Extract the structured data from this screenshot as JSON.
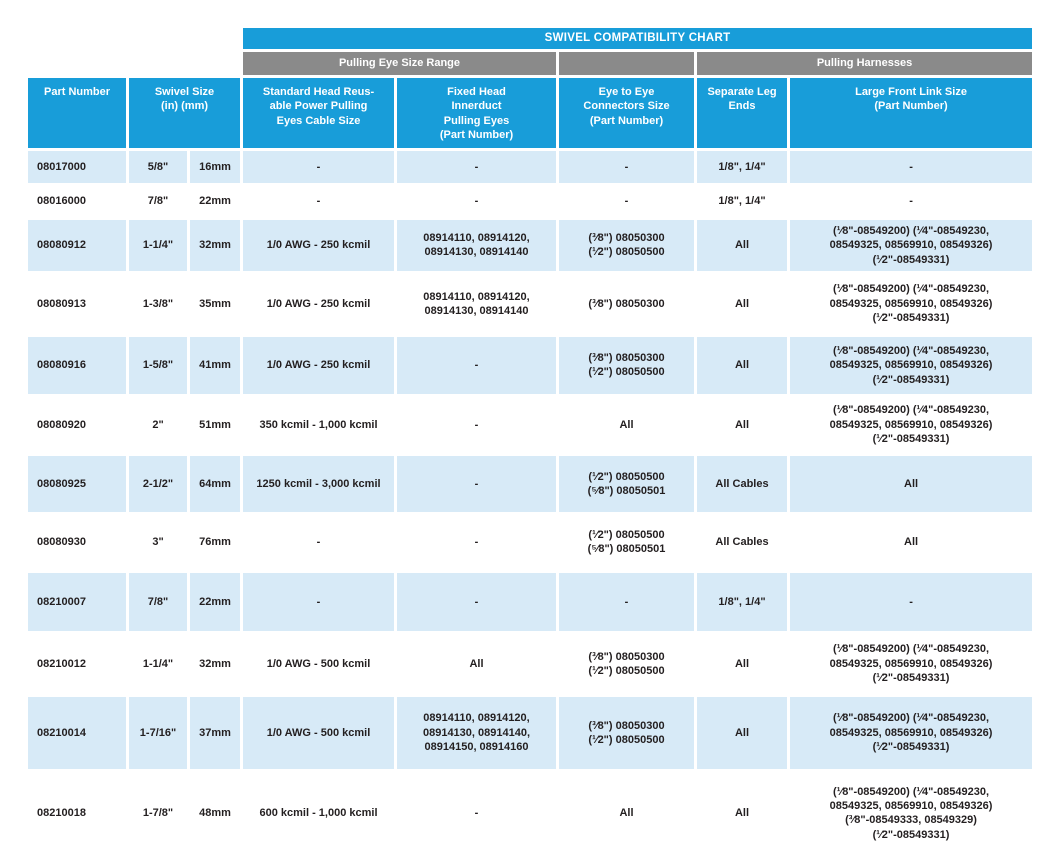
{
  "colors": {
    "header_blue": "#189DD9",
    "group_gray": "#8A8A8A",
    "row_alt_blue": "#D7EAF7",
    "header_text": "#FFFFFF",
    "body_text": "#231F20"
  },
  "table": {
    "title": "SWIVEL COMPATIBILITY CHART",
    "groups": {
      "pulling_eye": "Pulling Eye Size Range",
      "pulling_harnesses": "Pulling Harnesses"
    },
    "columns": {
      "part_number": "Part Number",
      "swivel_size": "Swivel Size\n(in) (mm)",
      "standard_head": "Standard Head Reus-\nable Power Pulling\nEyes Cable Size",
      "fixed_head": "Fixed Head\nInnerduct\nPulling Eyes\n(Part Number)",
      "eye_to_eye": "Eye to Eye\nConnectors Size\n(Part Number)",
      "separate_leg": "Separate Leg\nEnds",
      "large_front_link": "Large Front Link Size\n(Part Number)"
    },
    "rows": [
      {
        "part_number": "08017000",
        "size_in": "5/8\"",
        "size_mm": "16mm",
        "standard_head": "-",
        "fixed_head": "-",
        "eye_to_eye": "-",
        "separate_leg_ends": "1/8\", 1/4\"",
        "large_front_link": "-"
      },
      {
        "part_number": "08016000",
        "size_in": "7/8\"",
        "size_mm": "22mm",
        "standard_head": "-",
        "fixed_head": "-",
        "eye_to_eye": "-",
        "separate_leg_ends": "1/8\", 1/4\"",
        "large_front_link": "-"
      },
      {
        "part_number": "08080912",
        "size_in": "1-1/4\"",
        "size_mm": "32mm",
        "standard_head": "1/0 AWG - 250 kcmil",
        "fixed_head": "08914110, 08914120,\n08914130, 08914140",
        "eye_to_eye": "(³⁄8\") 08050300\n(¹⁄2\") 08050500",
        "separate_leg_ends": "All",
        "large_front_link": "(¹⁄8\"-08549200) (¹⁄4\"-08549230,\n08549325, 08569910, 08549326)\n(¹⁄2\"-08549331)"
      },
      {
        "part_number": "08080913",
        "size_in": "1-3/8\"",
        "size_mm": "35mm",
        "standard_head": "1/0 AWG - 250 kcmil",
        "fixed_head": "08914110, 08914120,\n08914130, 08914140",
        "eye_to_eye": "(³⁄8\") 08050300",
        "separate_leg_ends": "All",
        "large_front_link": "(¹⁄8\"-08549200) (¹⁄4\"-08549230,\n08549325, 08569910, 08549326)\n(¹⁄2\"-08549331)"
      },
      {
        "part_number": "08080916",
        "size_in": "1-5/8\"",
        "size_mm": "41mm",
        "standard_head": "1/0 AWG - 250 kcmil",
        "fixed_head": "-",
        "eye_to_eye": "(³⁄8\") 08050300\n(¹⁄2\") 08050500",
        "separate_leg_ends": "All",
        "large_front_link": "(¹⁄8\"-08549200) (¹⁄4\"-08549230,\n08549325, 08569910, 08549326)\n(¹⁄2\"-08549331)"
      },
      {
        "part_number": "08080920",
        "size_in": "2\"",
        "size_mm": "51mm",
        "standard_head": "350 kcmil - 1,000 kcmil",
        "fixed_head": "-",
        "eye_to_eye": "All",
        "separate_leg_ends": "All",
        "large_front_link": "(¹⁄8\"-08549200) (¹⁄4\"-08549230,\n08549325, 08569910, 08549326)\n(¹⁄2\"-08549331)"
      },
      {
        "part_number": "08080925",
        "size_in": "2-1/2\"",
        "size_mm": "64mm",
        "standard_head": "1250 kcmil - 3,000 kcmil",
        "fixed_head": "-",
        "eye_to_eye": "(¹⁄2\") 08050500\n(⁵⁄8\") 08050501",
        "separate_leg_ends": "All Cables",
        "large_front_link": "All"
      },
      {
        "part_number": "08080930",
        "size_in": "3\"",
        "size_mm": "76mm",
        "standard_head": "-",
        "fixed_head": "-",
        "eye_to_eye": "(¹⁄2\") 08050500\n(⁵⁄8\") 08050501",
        "separate_leg_ends": "All Cables",
        "large_front_link": "All"
      },
      {
        "part_number": "08210007",
        "size_in": "7/8\"",
        "size_mm": "22mm",
        "standard_head": "-",
        "fixed_head": "-",
        "eye_to_eye": "-",
        "separate_leg_ends": "1/8\", 1/4\"",
        "large_front_link": "-"
      },
      {
        "part_number": "08210012",
        "size_in": "1-1/4\"",
        "size_mm": "32mm",
        "standard_head": "1/0 AWG - 500 kcmil",
        "fixed_head": "All",
        "eye_to_eye": "(³⁄8\") 08050300\n(¹⁄2\") 08050500",
        "separate_leg_ends": "All",
        "large_front_link": "(¹⁄8\"-08549200) (¹⁄4\"-08549230,\n08549325, 08569910, 08549326)\n(¹⁄2\"-08549331)"
      },
      {
        "part_number": "08210014",
        "size_in": "1-7/16\"",
        "size_mm": "37mm",
        "standard_head": "1/0 AWG - 500 kcmil",
        "fixed_head": "08914110, 08914120,\n08914130, 08914140,\n08914150, 08914160",
        "eye_to_eye": "(³⁄8\") 08050300\n(¹⁄2\") 08050500",
        "separate_leg_ends": "All",
        "large_front_link": "(¹⁄8\"-08549200) (¹⁄4\"-08549230,\n08549325, 08569910, 08549326)\n(¹⁄2\"-08549331)"
      },
      {
        "part_number": "08210018",
        "size_in": "1-7/8\"",
        "size_mm": "48mm",
        "standard_head": "600 kcmil - 1,000 kcmil",
        "fixed_head": "-",
        "eye_to_eye": "All",
        "separate_leg_ends": "All",
        "large_front_link": "(¹⁄8\"-08549200) (¹⁄4\"-08549230,\n08549325, 08569910, 08549326)\n(³⁄8\"-08549333, 08549329)\n(¹⁄2\"-08549331)"
      }
    ]
  }
}
